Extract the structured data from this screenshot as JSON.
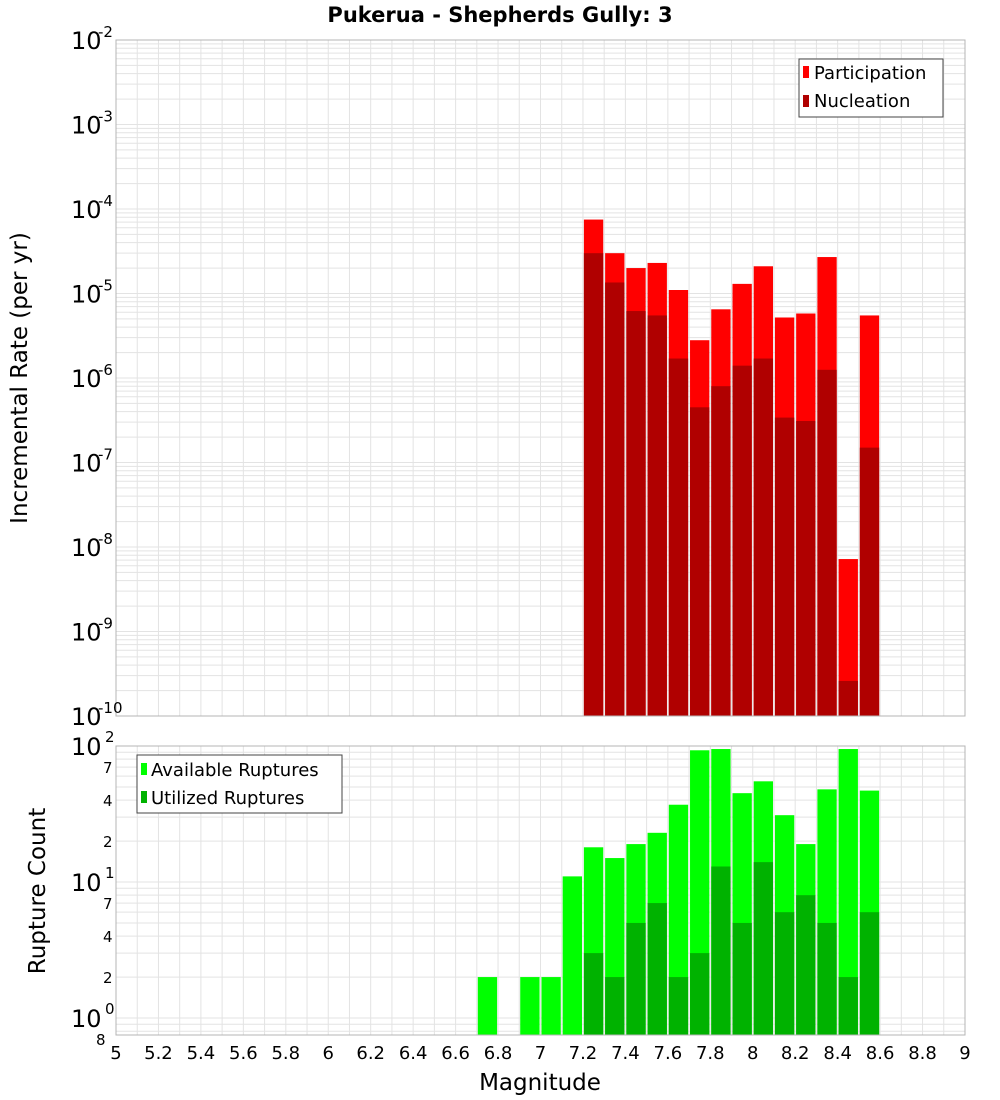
{
  "colors": {
    "participation": "#ff0000",
    "nucleation": "#b00000",
    "available": "#00ff00",
    "utilized": "#00b200",
    "grid": "#e3e3e3",
    "frame": "#b4b4b4"
  },
  "chart_data": [
    {
      "type": "bar",
      "title": "Pukerua - Shepherds Gully: 3",
      "ylabel": "Incremental Rate (per yr)",
      "yscale": "log",
      "ylim": [
        1e-10,
        0.01
      ],
      "xlim": [
        5,
        9
      ],
      "grid": true,
      "legend_position": "top-right",
      "y_ticks": [
        {
          "base": "10",
          "exp": "-10"
        },
        {
          "base": "10",
          "exp": "-9"
        },
        {
          "base": "10",
          "exp": "-8"
        },
        {
          "base": "10",
          "exp": "-7"
        },
        {
          "base": "10",
          "exp": "-6"
        },
        {
          "base": "10",
          "exp": "-5"
        },
        {
          "base": "10",
          "exp": "-4"
        },
        {
          "base": "10",
          "exp": "-3"
        },
        {
          "base": "10",
          "exp": "-2"
        }
      ],
      "x": [
        7.25,
        7.35,
        7.45,
        7.55,
        7.65,
        7.75,
        7.85,
        7.95,
        8.05,
        8.15,
        8.25,
        8.35,
        8.45,
        8.55
      ],
      "series": [
        {
          "name": "Participation",
          "values": [
            7.5e-05,
            3e-05,
            2e-05,
            2.3e-05,
            1.1e-05,
            2.8e-06,
            6.5e-06,
            1.3e-05,
            2.1e-05,
            5.2e-06,
            5.8e-06,
            2.7e-05,
            7.2e-09,
            5.5e-06
          ]
        },
        {
          "name": "Nucleation",
          "values": [
            3e-05,
            1.35e-05,
            6.2e-06,
            5.5e-06,
            1.7e-06,
            4.5e-07,
            8e-07,
            1.4e-06,
            1.7e-06,
            3.4e-07,
            3.1e-07,
            1.25e-06,
            2.6e-10,
            1.5e-07
          ]
        }
      ]
    },
    {
      "type": "bar",
      "ylabel": "Rupture Count",
      "xlabel": "Magnitude",
      "yscale": "log",
      "ylim": [
        0.75,
        100
      ],
      "xlim": [
        5,
        9
      ],
      "grid": true,
      "legend_position": "top-left",
      "y_ticks": [
        {
          "base": "10",
          "exp": "0"
        },
        {
          "base": "10",
          "exp": "1"
        },
        {
          "base": "10",
          "exp": "2"
        }
      ],
      "y_minor_ticks": [
        "8",
        "2",
        "4",
        "7",
        "2",
        "4",
        "7"
      ],
      "x_ticks": [
        "5",
        "5.2",
        "5.4",
        "5.6",
        "5.8",
        "6",
        "6.2",
        "6.4",
        "6.6",
        "6.8",
        "7",
        "7.2",
        "7.4",
        "7.6",
        "7.8",
        "8",
        "8.2",
        "8.4",
        "8.6",
        "8.8",
        "9"
      ],
      "x": [
        6.75,
        6.95,
        7.05,
        7.15,
        7.25,
        7.35,
        7.45,
        7.55,
        7.65,
        7.75,
        7.85,
        7.95,
        8.05,
        8.15,
        8.25,
        8.35,
        8.45,
        8.55
      ],
      "series": [
        {
          "name": "Available Ruptures",
          "values": [
            2,
            2,
            2,
            11,
            18,
            15,
            19,
            23,
            37,
            93,
            95,
            45,
            55,
            31,
            19,
            48,
            95,
            47
          ]
        },
        {
          "name": "Utilized Ruptures",
          "values": [
            0,
            0,
            0,
            0,
            3,
            2,
            5,
            7,
            2,
            3,
            13,
            5,
            14,
            6,
            8,
            5,
            2,
            6
          ]
        }
      ]
    }
  ]
}
